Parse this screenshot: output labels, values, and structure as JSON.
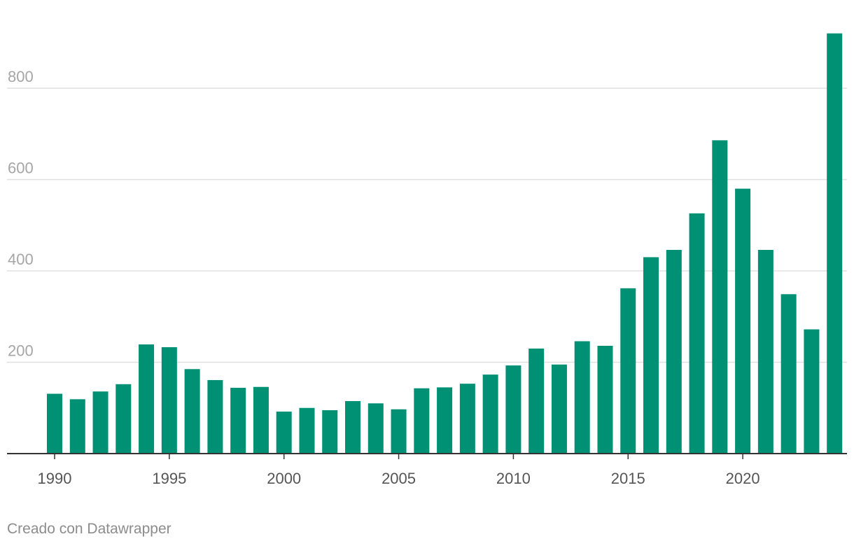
{
  "chart_data": {
    "type": "bar",
    "title": "",
    "xlabel": "",
    "ylabel": "",
    "ylim": [
      0,
      920
    ],
    "y_ticks": [
      200,
      400,
      600,
      800
    ],
    "x_tick_labels": [
      1990,
      1995,
      2000,
      2005,
      2010,
      2015,
      2020
    ],
    "grid": true,
    "bar_color": "#009074",
    "categories": [
      1990,
      1991,
      1992,
      1993,
      1994,
      1995,
      1996,
      1997,
      1998,
      1999,
      2000,
      2001,
      2002,
      2003,
      2004,
      2005,
      2006,
      2007,
      2008,
      2009,
      2010,
      2011,
      2012,
      2013,
      2014,
      2015,
      2016,
      2017,
      2018,
      2019,
      2020,
      2021,
      2022,
      2023,
      2024
    ],
    "values": [
      131,
      119,
      136,
      152,
      239,
      233,
      185,
      161,
      144,
      146,
      92,
      100,
      95,
      115,
      110,
      97,
      143,
      145,
      153,
      173,
      193,
      230,
      195,
      246,
      236,
      362,
      430,
      446,
      526,
      686,
      580,
      446,
      349,
      272,
      920
    ]
  },
  "footer": {
    "credit": "Creado con Datawrapper"
  }
}
